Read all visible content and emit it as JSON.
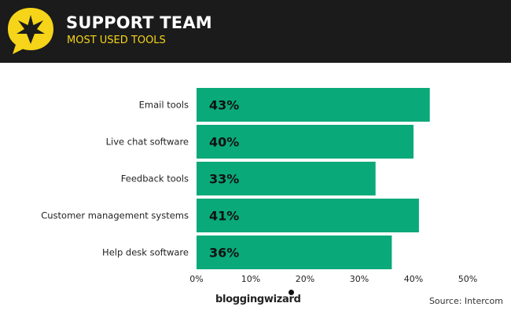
{
  "header": {
    "title": "SUPPORT TEAM",
    "subtitle": "MOST USED TOOLS",
    "logo_icon": "star-speech-bubble-icon"
  },
  "colors": {
    "bar": "#0aa979",
    "header_bg": "#1b1b1b",
    "accent": "#f5d419"
  },
  "chart_data": {
    "type": "bar",
    "orientation": "horizontal",
    "title": "SUPPORT TEAM",
    "subtitle": "MOST USED TOOLS",
    "categories": [
      "Email tools",
      "Live chat software",
      "Feedback tools",
      "Customer management systems",
      "Help desk software"
    ],
    "values": [
      43,
      40,
      33,
      41,
      36
    ],
    "value_labels": [
      "43%",
      "40%",
      "33%",
      "41%",
      "36%"
    ],
    "xlim": [
      0,
      50
    ],
    "ticks": [
      0,
      10,
      20,
      30,
      40,
      50
    ],
    "tick_labels": [
      "0%",
      "10%",
      "20%",
      "30%",
      "40%",
      "50%"
    ],
    "xlabel": "",
    "ylabel": "",
    "grid": false
  },
  "footer": {
    "brand": "bloggingwizard",
    "source": "Source: Intercom"
  }
}
